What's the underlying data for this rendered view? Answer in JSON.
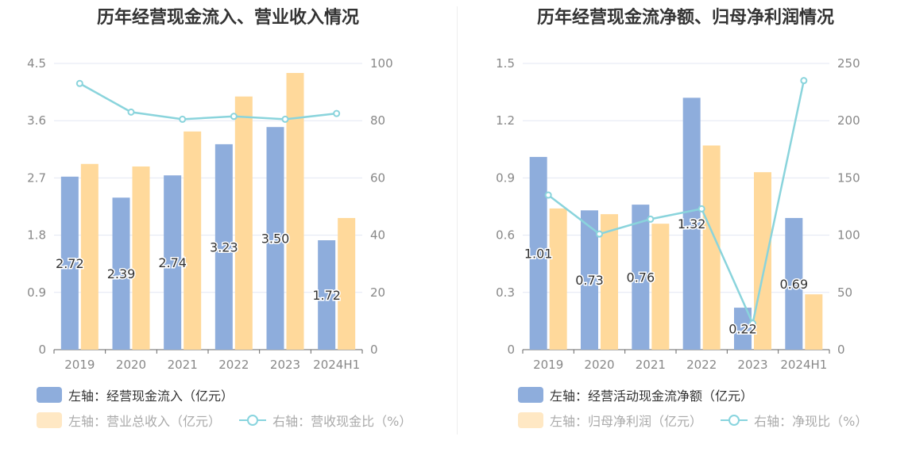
{
  "colors": {
    "bar_primary": "#8eaddc",
    "bar_secondary": "#ffd99b",
    "line": "#8ad4dc",
    "grid": "#e3e7f3",
    "axis_text": "#888888"
  },
  "chart_data": [
    {
      "type": "bar+line",
      "title": "历年经营现金流入、营业收入情况",
      "categories": [
        "2019",
        "2020",
        "2021",
        "2022",
        "2023",
        "2024H1"
      ],
      "left_axis": {
        "ticks": [
          "0",
          "0.9",
          "1.8",
          "2.7",
          "3.6",
          "4.5"
        ],
        "range": [
          0,
          4.5
        ]
      },
      "right_axis": {
        "ticks": [
          "0",
          "20",
          "40",
          "60",
          "80",
          "100"
        ],
        "range": [
          0,
          100
        ]
      },
      "series": [
        {
          "name": "左轴：经营现金流入（亿元）",
          "type": "bar",
          "axis": "left",
          "values": [
            2.72,
            2.39,
            2.74,
            3.23,
            3.5,
            1.72
          ],
          "labels": [
            "2.72",
            "2.39",
            "2.74",
            "3.23",
            "3.50",
            "1.72"
          ]
        },
        {
          "name": "左轴：营业总收入（亿元）",
          "type": "bar",
          "axis": "left",
          "values": [
            2.92,
            2.88,
            3.43,
            3.98,
            4.35,
            2.07
          ]
        },
        {
          "name": "右轴：营收现金比（%）",
          "type": "line",
          "axis": "right",
          "values": [
            93,
            83,
            80.5,
            81.5,
            80.5,
            82.5
          ]
        }
      ]
    },
    {
      "type": "bar+line",
      "title": "历年经营现金流净额、归母净利润情况",
      "categories": [
        "2019",
        "2020",
        "2021",
        "2022",
        "2023",
        "2024H1"
      ],
      "left_axis": {
        "ticks": [
          "0",
          "0.3",
          "0.6",
          "0.9",
          "1.2",
          "1.5"
        ],
        "range": [
          0,
          1.5
        ]
      },
      "right_axis": {
        "ticks": [
          "0",
          "50",
          "100",
          "150",
          "200",
          "250"
        ],
        "range": [
          0,
          250
        ]
      },
      "series": [
        {
          "name": "左轴：经营活动现金流净额（亿元）",
          "type": "bar",
          "axis": "left",
          "values": [
            1.01,
            0.73,
            0.76,
            1.32,
            0.22,
            0.69
          ],
          "labels": [
            "1.01",
            "0.73",
            "0.76",
            "1.32",
            "0.22",
            "0.69"
          ]
        },
        {
          "name": "左轴：归母净利润（亿元）",
          "type": "bar",
          "axis": "left",
          "values": [
            0.74,
            0.71,
            0.66,
            1.07,
            0.93,
            0.29
          ]
        },
        {
          "name": "右轴：净现比（%）",
          "type": "line",
          "axis": "right",
          "values": [
            135,
            101,
            114,
            123,
            23,
            235
          ]
        }
      ]
    }
  ]
}
